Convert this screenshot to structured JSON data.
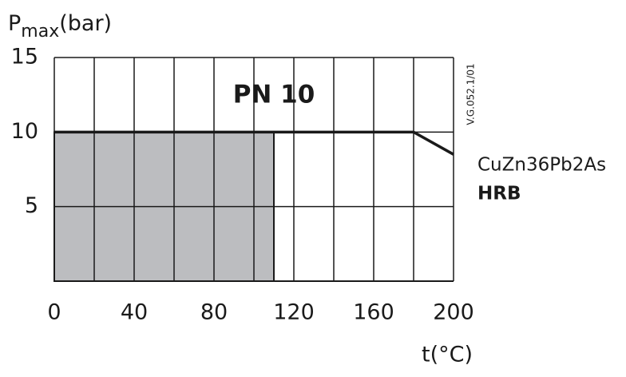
{
  "chart_data": {
    "type": "line",
    "ylabel": {
      "main": "P",
      "sub": "max",
      "unit": "(bar)"
    },
    "xlabel": "t(°C)",
    "xlim": [
      0,
      200
    ],
    "xticks": [
      0,
      40,
      80,
      120,
      160,
      200
    ],
    "xgrid": [
      0,
      20,
      40,
      60,
      80,
      100,
      120,
      140,
      160,
      180,
      200
    ],
    "ylim": [
      0,
      15
    ],
    "yticks": [
      5,
      10,
      15
    ],
    "grid": true,
    "x": [
      0,
      180,
      200
    ],
    "values": [
      10,
      10,
      8.5
    ],
    "color": "#1a1a1a",
    "shaded": {
      "x": [
        0,
        110
      ],
      "values": [
        10,
        10
      ],
      "color": "#bcbdc0"
    },
    "annotations": [
      "PN 10",
      "CuZn36Pb2As",
      "HRB",
      "V.G.052.1/01"
    ]
  }
}
